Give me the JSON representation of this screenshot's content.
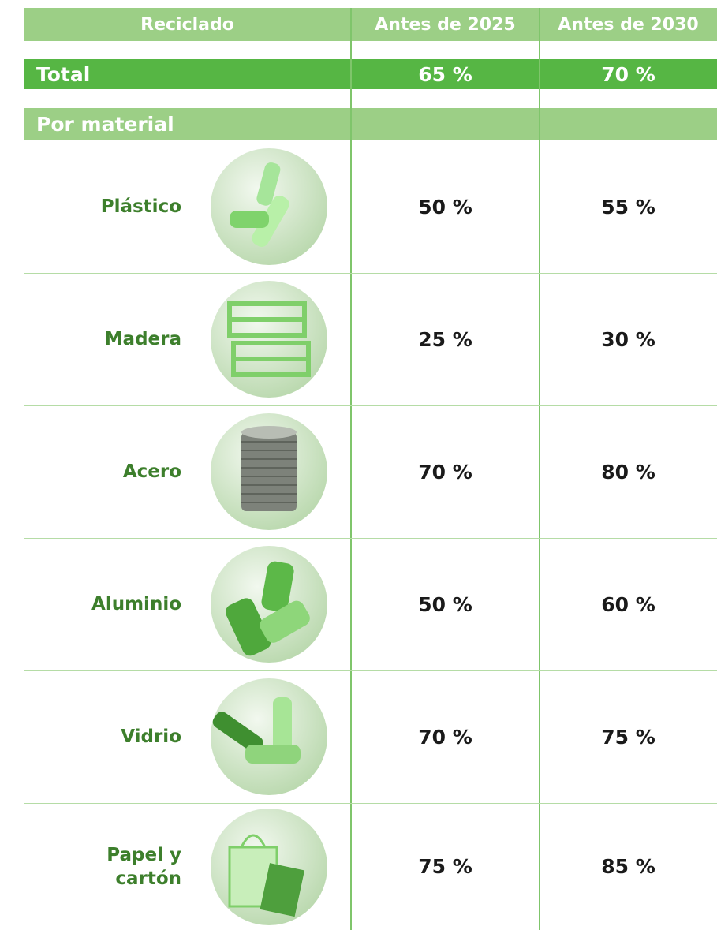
{
  "table": {
    "header": [
      "Reciclado",
      "Antes de 2025",
      "Antes de 2030"
    ],
    "total": [
      "Total",
      "65 %",
      "70 %"
    ],
    "section": "Por material",
    "rows": [
      [
        "Plástico",
        "50 %",
        "55 %"
      ],
      [
        "Madera",
        "25 %",
        "30 %"
      ],
      [
        "Acero",
        "70 %",
        "80 %"
      ],
      [
        "Aluminio",
        "50 %",
        "60 %"
      ],
      [
        "Vidrio",
        "70 %",
        "75 %"
      ],
      [
        "Papel y cartón",
        "75 %",
        "85 %"
      ]
    ]
  }
}
